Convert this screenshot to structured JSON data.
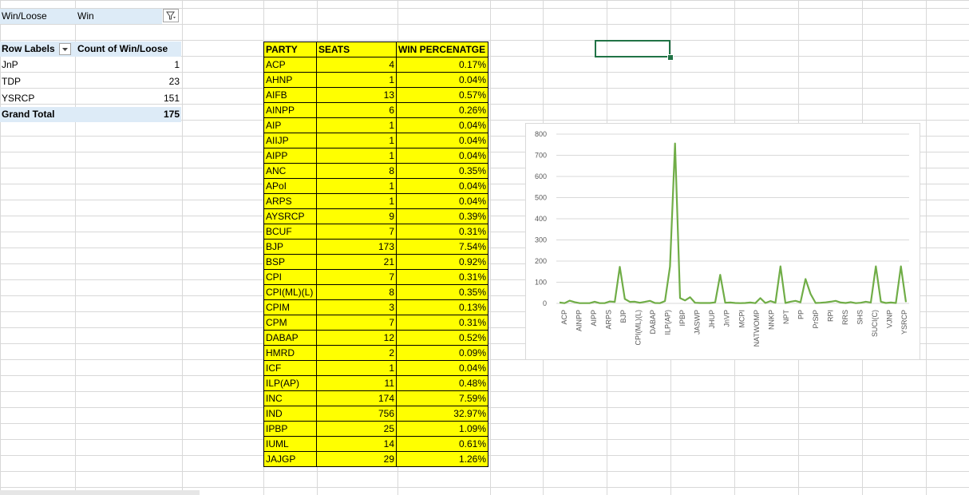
{
  "filter": {
    "field": "Win/Loose",
    "value": "Win"
  },
  "pivot": {
    "header_row_labels": "Row Labels",
    "header_count": "Count of Win/Loose",
    "rows": [
      {
        "label": "JnP",
        "count": "1"
      },
      {
        "label": "TDP",
        "count": "23"
      },
      {
        "label": "YSRCP",
        "count": "151"
      }
    ],
    "total_label": "Grand Total",
    "total_count": "175"
  },
  "table": {
    "headers": [
      "PARTY",
      "SEATS",
      "WIN PERCENATGE"
    ],
    "rows": [
      [
        "ACP",
        "4",
        "0.17%"
      ],
      [
        "AHNP",
        "1",
        "0.04%"
      ],
      [
        "AIFB",
        "13",
        "0.57%"
      ],
      [
        "AINPP",
        "6",
        "0.26%"
      ],
      [
        "AIP",
        "1",
        "0.04%"
      ],
      [
        "AIIJP",
        "1",
        "0.04%"
      ],
      [
        "AIPP",
        "1",
        "0.04%"
      ],
      [
        "ANC",
        "8",
        "0.35%"
      ],
      [
        "APoI",
        "1",
        "0.04%"
      ],
      [
        "ARPS",
        "1",
        "0.04%"
      ],
      [
        "AYSRCP",
        "9",
        "0.39%"
      ],
      [
        "BCUF",
        "7",
        "0.31%"
      ],
      [
        "BJP",
        "173",
        "7.54%"
      ],
      [
        "BSP",
        "21",
        "0.92%"
      ],
      [
        "CPI",
        "7",
        "0.31%"
      ],
      [
        "CPI(ML)(L)",
        "8",
        "0.35%"
      ],
      [
        "CPIM",
        "3",
        "0.13%"
      ],
      [
        "CPM",
        "7",
        "0.31%"
      ],
      [
        "DABAP",
        "12",
        "0.52%"
      ],
      [
        "HMRD",
        "2",
        "0.09%"
      ],
      [
        "ICF",
        "1",
        "0.04%"
      ],
      [
        "ILP(AP)",
        "11",
        "0.48%"
      ],
      [
        "INC",
        "174",
        "7.59%"
      ],
      [
        "IND",
        "756",
        "32.97%"
      ],
      [
        "IPBP",
        "25",
        "1.09%"
      ],
      [
        "IUML",
        "14",
        "0.61%"
      ],
      [
        "JAJGP",
        "29",
        "1.26%"
      ]
    ]
  },
  "chart_data": {
    "type": "line",
    "color": "#70ad47",
    "ylim": [
      0,
      800
    ],
    "yticks": [
      "0",
      "100",
      "200",
      "300",
      "400",
      "500",
      "600",
      "700",
      "800"
    ],
    "tick_labels": [
      "ACP",
      "AINPP",
      "AIPP",
      "ARPS",
      "BJP",
      "CPI(ML)(L)",
      "DABAP",
      "ILP(AP)",
      "IPBP",
      "JASWP",
      "JHUP",
      "JnVP",
      "MCPI",
      "NATWOMP",
      "NNKP",
      "NPT",
      "PP",
      "PrStP",
      "RPI",
      "RRS",
      "SHS",
      "SUCI(C)",
      "VJNP",
      "YSRCP"
    ],
    "values": [
      4,
      1,
      13,
      6,
      1,
      1,
      1,
      8,
      1,
      1,
      9,
      7,
      173,
      21,
      7,
      8,
      3,
      7,
      12,
      2,
      1,
      11,
      174,
      756,
      25,
      14,
      29,
      3,
      2,
      2,
      2,
      5,
      135,
      3,
      4,
      2,
      1,
      2,
      4,
      1,
      25,
      2,
      11,
      3,
      175,
      2,
      8,
      12,
      5,
      115,
      45,
      2,
      3,
      5,
      8,
      12,
      4,
      2,
      6,
      1,
      3,
      8,
      4,
      175,
      8,
      2,
      4,
      2,
      175,
      6
    ]
  }
}
